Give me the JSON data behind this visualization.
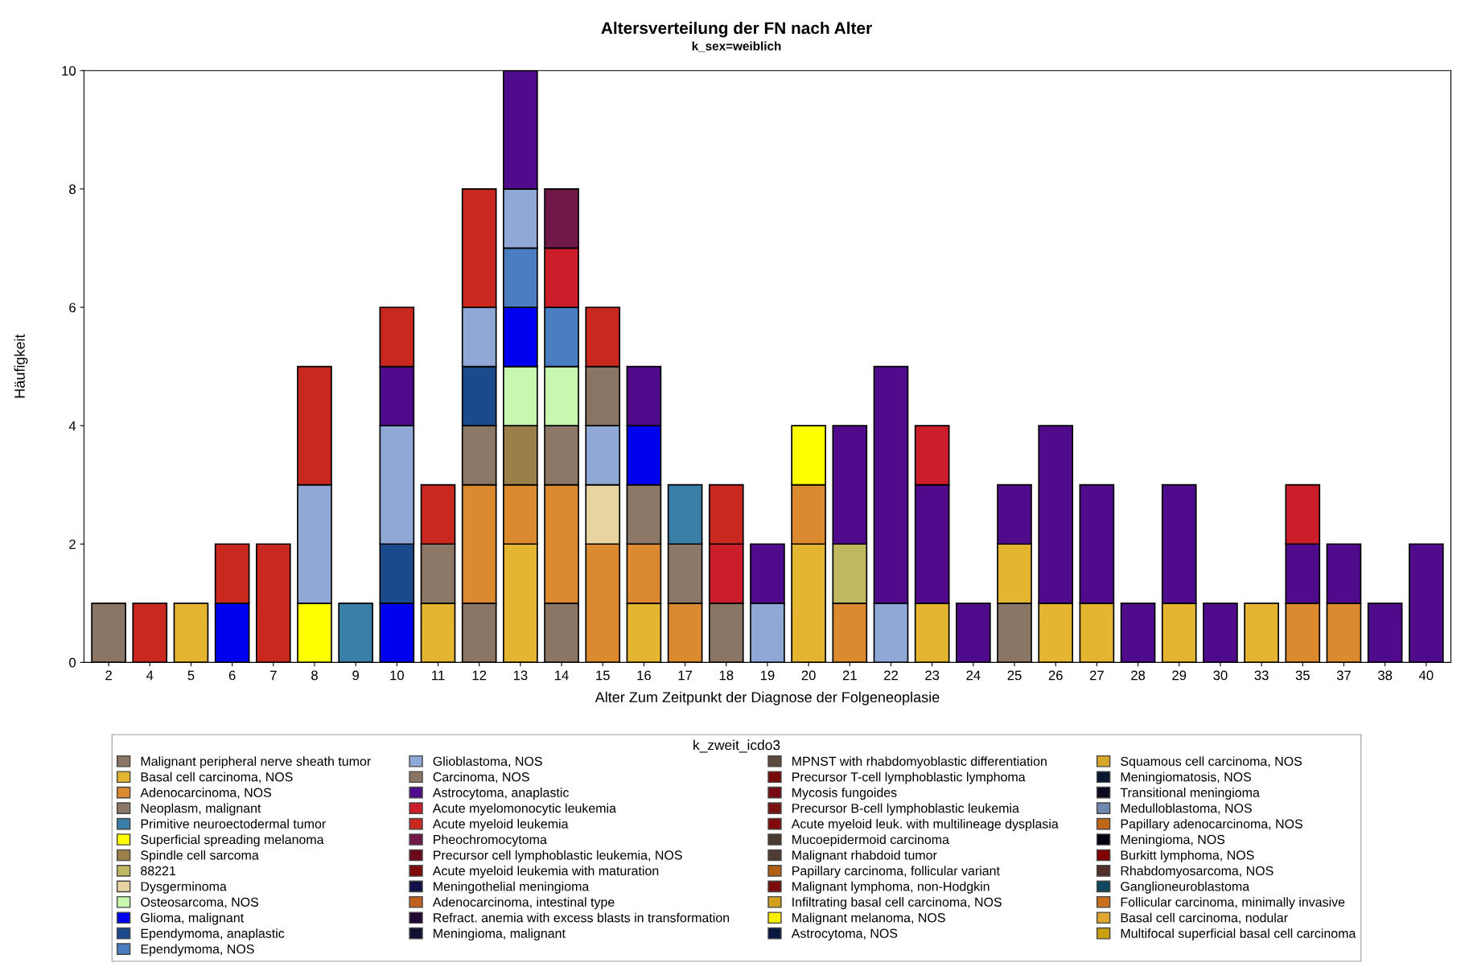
{
  "chart_data": {
    "type": "bar",
    "stacked": true,
    "title": "Altersverteilung der FN nach Alter",
    "subtitle": "k_sex=weiblich",
    "xlabel": "Alter Zum Zeitpunkt der Diagnose der Folgeneoplasie",
    "ylabel": "Häufigkeit",
    "legend_title": "k_zweit_icdo3",
    "legend": "bottom",
    "grid": false,
    "ylim": [
      0,
      10
    ],
    "yticks": [
      0,
      2,
      4,
      6,
      8,
      10
    ],
    "categories": [
      "2",
      "4",
      "5",
      "6",
      "7",
      "8",
      "9",
      "10",
      "11",
      "12",
      "13",
      "14",
      "15",
      "16",
      "17",
      "18",
      "19",
      "20",
      "21",
      "22",
      "23",
      "24",
      "25",
      "26",
      "27",
      "28",
      "29",
      "30",
      "33",
      "35",
      "37",
      "38",
      "40"
    ],
    "series": [
      {
        "name": "Malignant peripheral nerve sheath tumor",
        "color": "#8b7565",
        "values": [
          1,
          null,
          null,
          null,
          null,
          null,
          null,
          null,
          null,
          1,
          null,
          1,
          null,
          null,
          null,
          1,
          null,
          null,
          null,
          null,
          null,
          null,
          1,
          null,
          null,
          null,
          null,
          null,
          null,
          null,
          null,
          null,
          null
        ]
      },
      {
        "name": "Basal cell carcinoma, NOS",
        "color": "#e3b530",
        "values": [
          null,
          null,
          1,
          null,
          null,
          null,
          null,
          null,
          1,
          null,
          2,
          null,
          null,
          1,
          null,
          null,
          null,
          2,
          null,
          null,
          1,
          null,
          1,
          1,
          1,
          null,
          1,
          null,
          1,
          null,
          null,
          null,
          null
        ]
      },
      {
        "name": "Adenocarcinoma, NOS",
        "color": "#db8a30",
        "values": [
          null,
          null,
          null,
          null,
          null,
          null,
          null,
          null,
          null,
          2,
          1,
          2,
          2,
          1,
          1,
          null,
          null,
          1,
          1,
          null,
          null,
          null,
          null,
          null,
          null,
          null,
          null,
          null,
          null,
          1,
          1,
          null,
          null
        ]
      },
      {
        "name": "Neoplasm, malignant",
        "color": "#8d7868",
        "values": [
          null,
          null,
          null,
          null,
          null,
          null,
          null,
          null,
          1,
          1,
          null,
          1,
          null,
          1,
          1,
          null,
          null,
          null,
          null,
          null,
          null,
          null,
          null,
          null,
          null,
          null,
          null,
          null,
          null,
          null,
          null,
          null,
          null
        ]
      },
      {
        "name": "Primitive neuroectodermal tumor",
        "color": "#3a7fa8",
        "values": [
          null,
          null,
          null,
          null,
          null,
          null,
          1,
          null,
          null,
          null,
          null,
          null,
          null,
          null,
          1,
          null,
          null,
          null,
          null,
          null,
          null,
          null,
          null,
          null,
          null,
          null,
          null,
          null,
          null,
          null,
          null,
          null,
          null
        ]
      },
      {
        "name": "Superficial spreading melanoma",
        "color": "#ffff00",
        "values": [
          null,
          null,
          null,
          null,
          null,
          1,
          null,
          null,
          null,
          null,
          null,
          null,
          null,
          null,
          null,
          null,
          null,
          1,
          null,
          null,
          null,
          null,
          null,
          null,
          null,
          null,
          null,
          null,
          null,
          null,
          null,
          null,
          null
        ]
      },
      {
        "name": "Spindle cell sarcoma",
        "color": "#9a8048",
        "values": [
          null,
          null,
          null,
          null,
          null,
          null,
          null,
          null,
          null,
          null,
          1,
          null,
          null,
          null,
          null,
          null,
          null,
          null,
          null,
          null,
          null,
          null,
          null,
          null,
          null,
          null,
          null,
          null,
          null,
          null,
          null,
          null,
          null
        ]
      },
      {
        "name": "88221",
        "color": "#c0b860",
        "values": [
          null,
          null,
          null,
          null,
          null,
          null,
          null,
          null,
          null,
          null,
          null,
          null,
          null,
          null,
          null,
          null,
          null,
          null,
          1,
          null,
          null,
          null,
          null,
          null,
          null,
          null,
          null,
          null,
          null,
          null,
          null,
          null,
          null
        ]
      },
      {
        "name": "Dysgerminoma",
        "color": "#e8d4a0",
        "values": [
          null,
          null,
          null,
          null,
          null,
          null,
          null,
          null,
          null,
          null,
          null,
          null,
          1,
          null,
          null,
          null,
          null,
          null,
          null,
          null,
          null,
          null,
          null,
          null,
          null,
          null,
          null,
          null,
          null,
          null,
          null,
          null,
          null
        ]
      },
      {
        "name": "Osteosarcoma, NOS",
        "color": "#c8f8b0",
        "values": [
          null,
          null,
          null,
          null,
          null,
          null,
          null,
          null,
          null,
          null,
          1,
          1,
          null,
          null,
          null,
          null,
          null,
          null,
          null,
          null,
          null,
          null,
          null,
          null,
          null,
          null,
          null,
          null,
          null,
          null,
          null,
          null,
          null
        ]
      },
      {
        "name": "Glioma, malignant",
        "color": "#0000f0",
        "values": [
          null,
          null,
          null,
          1,
          null,
          null,
          null,
          1,
          null,
          null,
          1,
          null,
          null,
          1,
          null,
          null,
          null,
          null,
          null,
          null,
          null,
          null,
          null,
          null,
          null,
          null,
          null,
          null,
          null,
          null,
          null,
          null,
          null
        ]
      },
      {
        "name": "Ependymoma, anaplastic",
        "color": "#1a4a8a",
        "values": [
          null,
          null,
          null,
          null,
          null,
          null,
          null,
          1,
          null,
          1,
          null,
          null,
          null,
          null,
          null,
          null,
          null,
          null,
          null,
          null,
          null,
          null,
          null,
          null,
          null,
          null,
          null,
          null,
          null,
          null,
          null,
          null,
          null
        ]
      },
      {
        "name": "Ependymoma, NOS",
        "color": "#4a7ec0",
        "values": [
          null,
          null,
          null,
          null,
          null,
          null,
          null,
          null,
          null,
          null,
          1,
          1,
          null,
          null,
          null,
          null,
          null,
          null,
          null,
          null,
          null,
          null,
          null,
          null,
          null,
          null,
          null,
          null,
          null,
          null,
          null,
          null,
          null
        ]
      },
      {
        "name": "Glioblastoma, NOS",
        "color": "#8fa8d6",
        "values": [
          null,
          null,
          null,
          null,
          null,
          2,
          null,
          2,
          null,
          1,
          1,
          null,
          1,
          null,
          null,
          null,
          1,
          null,
          null,
          1,
          null,
          null,
          null,
          null,
          null,
          null,
          null,
          null,
          null,
          null,
          null,
          null,
          null
        ]
      },
      {
        "name": "Carcinoma, NOS",
        "color": "#8a7464",
        "values": [
          null,
          null,
          null,
          null,
          null,
          null,
          null,
          null,
          null,
          null,
          null,
          null,
          1,
          null,
          null,
          null,
          null,
          null,
          null,
          null,
          null,
          null,
          null,
          null,
          null,
          null,
          null,
          null,
          null,
          null,
          null,
          null,
          null
        ]
      },
      {
        "name": "Astrocytoma, anaplastic",
        "color": "#500a8c",
        "values": [
          null,
          null,
          null,
          null,
          null,
          null,
          null,
          1,
          null,
          null,
          2,
          null,
          null,
          1,
          null,
          null,
          1,
          null,
          2,
          4,
          2,
          1,
          1,
          3,
          2,
          1,
          2,
          1,
          null,
          1,
          1,
          1,
          2
        ]
      },
      {
        "name": "Acute myelomonocytic leukemia",
        "color": "#cc1e2a",
        "values": [
          null,
          null,
          null,
          null,
          null,
          null,
          null,
          null,
          null,
          null,
          null,
          1,
          null,
          null,
          null,
          1,
          null,
          null,
          null,
          null,
          1,
          null,
          null,
          null,
          null,
          null,
          null,
          null,
          null,
          1,
          null,
          null,
          null
        ]
      },
      {
        "name": "Acute myeloid leukemia",
        "color": "#c8281e",
        "values": [
          null,
          1,
          null,
          1,
          2,
          2,
          null,
          1,
          1,
          2,
          null,
          null,
          1,
          null,
          null,
          1,
          null,
          null,
          null,
          null,
          null,
          null,
          null,
          null,
          null,
          null,
          null,
          null,
          null,
          null,
          null,
          null,
          null
        ]
      },
      {
        "name": "Pheochromocytoma",
        "color": "#701848",
        "values": [
          null,
          null,
          null,
          null,
          null,
          null,
          null,
          null,
          null,
          null,
          null,
          1,
          null,
          null,
          null,
          null,
          null,
          null,
          null,
          null,
          null,
          null,
          null,
          null,
          null,
          null,
          null,
          null,
          null,
          null,
          null,
          null,
          null
        ]
      },
      {
        "name": "Precursor cell lymphoblastic leukemia, NOS",
        "color": "#6a0a1a",
        "values": [
          null,
          null,
          null,
          null,
          null,
          null,
          null,
          null,
          null,
          null,
          null,
          null,
          null,
          null,
          null,
          null,
          null,
          null,
          null,
          null,
          null,
          null,
          null,
          null,
          null,
          null,
          null,
          null,
          null,
          null,
          null,
          null,
          null
        ]
      },
      {
        "name": "Acute myeloid leukemia with maturation",
        "color": "#800a0a",
        "values": [
          null,
          null,
          null,
          null,
          null,
          null,
          null,
          null,
          null,
          null,
          null,
          null,
          null,
          null,
          null,
          null,
          null,
          null,
          null,
          null,
          null,
          null,
          null,
          null,
          null,
          null,
          null,
          null,
          null,
          null,
          null,
          null,
          null
        ]
      },
      {
        "name": "Meningothelial meningioma",
        "color": "#10104a",
        "values": [
          null,
          null,
          null,
          null,
          null,
          null,
          null,
          null,
          null,
          null,
          null,
          null,
          null,
          null,
          null,
          null,
          null,
          null,
          null,
          null,
          null,
          null,
          null,
          null,
          null,
          null,
          null,
          null,
          null,
          null,
          null,
          null,
          null
        ]
      },
      {
        "name": "Adenocarcinoma, intestinal type",
        "color": "#c06020",
        "values": [
          null,
          null,
          null,
          null,
          null,
          null,
          null,
          null,
          null,
          null,
          null,
          null,
          null,
          null,
          null,
          null,
          null,
          null,
          null,
          null,
          null,
          null,
          null,
          null,
          null,
          null,
          null,
          null,
          null,
          null,
          null,
          null,
          null
        ]
      },
      {
        "name": "Refract. anemia with excess blasts in transformation",
        "color": "#200830",
        "values": [
          null,
          null,
          null,
          null,
          null,
          null,
          null,
          null,
          null,
          null,
          null,
          null,
          null,
          null,
          null,
          null,
          null,
          null,
          null,
          null,
          null,
          null,
          null,
          null,
          null,
          null,
          null,
          null,
          null,
          null,
          null,
          null,
          null
        ]
      },
      {
        "name": "Meningioma, malignant",
        "color": "#101030",
        "values": [
          null,
          null,
          null,
          null,
          null,
          null,
          null,
          null,
          null,
          null,
          null,
          null,
          null,
          null,
          null,
          null,
          null,
          null,
          null,
          null,
          null,
          null,
          null,
          null,
          null,
          null,
          null,
          null,
          null,
          null,
          null,
          null,
          null
        ]
      },
      {
        "name": "MPNST with rhabdomyoblastic differentiation",
        "color": "#5a4a40",
        "values": [
          null,
          null,
          null,
          null,
          null,
          null,
          null,
          null,
          null,
          null,
          null,
          null,
          null,
          null,
          null,
          null,
          null,
          null,
          null,
          null,
          null,
          null,
          null,
          null,
          null,
          null,
          null,
          null,
          null,
          null,
          null,
          null,
          null
        ]
      },
      {
        "name": "Precursor T-cell lymphoblastic lymphoma",
        "color": "#780a0a",
        "values": [
          null,
          null,
          null,
          null,
          null,
          null,
          null,
          null,
          null,
          null,
          null,
          null,
          null,
          null,
          null,
          null,
          null,
          null,
          null,
          null,
          null,
          null,
          null,
          null,
          null,
          null,
          null,
          null,
          null,
          null,
          null,
          null,
          null
        ]
      },
      {
        "name": "Mycosis fungoides",
        "color": "#780812",
        "values": [
          null,
          null,
          null,
          null,
          null,
          null,
          null,
          null,
          null,
          null,
          null,
          null,
          null,
          null,
          null,
          null,
          null,
          null,
          null,
          null,
          null,
          null,
          null,
          null,
          null,
          null,
          null,
          null,
          null,
          null,
          null,
          null,
          null
        ]
      },
      {
        "name": "Precursor B-cell lymphoblastic leukemia",
        "color": "#7a1010",
        "values": [
          null,
          null,
          null,
          null,
          null,
          null,
          null,
          null,
          null,
          null,
          null,
          null,
          null,
          null,
          null,
          null,
          null,
          null,
          null,
          null,
          null,
          null,
          null,
          null,
          null,
          null,
          null,
          null,
          null,
          null,
          null,
          null,
          null
        ]
      },
      {
        "name": "Acute myeloid leuk. with multilineage dysplasia",
        "color": "#820a0a",
        "values": [
          null,
          null,
          null,
          null,
          null,
          null,
          null,
          null,
          null,
          null,
          null,
          null,
          null,
          null,
          null,
          null,
          null,
          null,
          null,
          null,
          null,
          null,
          null,
          null,
          null,
          null,
          null,
          null,
          null,
          null,
          null,
          null,
          null
        ]
      },
      {
        "name": "Mucoepidermoid carcinoma",
        "color": "#4a3a30",
        "values": [
          null,
          null,
          null,
          null,
          null,
          null,
          null,
          null,
          null,
          null,
          null,
          null,
          null,
          null,
          null,
          null,
          null,
          null,
          null,
          null,
          null,
          null,
          null,
          null,
          null,
          null,
          null,
          null,
          null,
          null,
          null,
          null,
          null
        ]
      },
      {
        "name": "Malignant rhabdoid tumor",
        "color": "#503a34",
        "values": [
          null,
          null,
          null,
          null,
          null,
          null,
          null,
          null,
          null,
          null,
          null,
          null,
          null,
          null,
          null,
          null,
          null,
          null,
          null,
          null,
          null,
          null,
          null,
          null,
          null,
          null,
          null,
          null,
          null,
          null,
          null,
          null,
          null
        ]
      },
      {
        "name": "Papillary carcinoma, follicular variant",
        "color": "#b06010",
        "values": [
          null,
          null,
          null,
          null,
          null,
          null,
          null,
          null,
          null,
          null,
          null,
          null,
          null,
          null,
          null,
          null,
          null,
          null,
          null,
          null,
          null,
          null,
          null,
          null,
          null,
          null,
          null,
          null,
          null,
          null,
          null,
          null,
          null
        ]
      },
      {
        "name": "Malignant lymphoma, non-Hodgkin",
        "color": "#7c0c0c",
        "values": [
          null,
          null,
          null,
          null,
          null,
          null,
          null,
          null,
          null,
          null,
          null,
          null,
          null,
          null,
          null,
          null,
          null,
          null,
          null,
          null,
          null,
          null,
          null,
          null,
          null,
          null,
          null,
          null,
          null,
          null,
          null,
          null,
          null
        ]
      },
      {
        "name": "Infiltrating basal cell carcinoma, NOS",
        "color": "#d0a020",
        "values": [
          null,
          null,
          null,
          null,
          null,
          null,
          null,
          null,
          null,
          null,
          null,
          null,
          null,
          null,
          null,
          null,
          null,
          null,
          null,
          null,
          null,
          null,
          null,
          null,
          null,
          null,
          null,
          null,
          null,
          null,
          null,
          null,
          null
        ]
      },
      {
        "name": "Malignant melanoma, NOS",
        "color": "#f8f000",
        "values": [
          null,
          null,
          null,
          null,
          null,
          null,
          null,
          null,
          null,
          null,
          null,
          null,
          null,
          null,
          null,
          null,
          null,
          null,
          null,
          null,
          null,
          null,
          null,
          null,
          null,
          null,
          null,
          null,
          null,
          null,
          null,
          null,
          null
        ]
      },
      {
        "name": "Astrocytoma, NOS",
        "color": "#081840",
        "values": [
          null,
          null,
          null,
          null,
          null,
          null,
          null,
          null,
          null,
          null,
          null,
          null,
          null,
          null,
          null,
          null,
          null,
          null,
          null,
          null,
          null,
          null,
          null,
          null,
          null,
          null,
          null,
          null,
          null,
          null,
          null,
          null,
          null
        ]
      },
      {
        "name": "Squamous cell carcinoma, NOS",
        "color": "#d8a828",
        "values": [
          null,
          null,
          null,
          null,
          null,
          null,
          null,
          null,
          null,
          null,
          null,
          null,
          null,
          null,
          null,
          null,
          null,
          null,
          null,
          null,
          null,
          null,
          null,
          null,
          null,
          null,
          null,
          null,
          null,
          null,
          null,
          null,
          null
        ]
      },
      {
        "name": "Meningiomatosis, NOS",
        "color": "#081830",
        "values": [
          null,
          null,
          null,
          null,
          null,
          null,
          null,
          null,
          null,
          null,
          null,
          null,
          null,
          null,
          null,
          null,
          null,
          null,
          null,
          null,
          null,
          null,
          null,
          null,
          null,
          null,
          null,
          null,
          null,
          null,
          null,
          null,
          null
        ]
      },
      {
        "name": "Transitional meningioma",
        "color": "#100820",
        "values": [
          null,
          null,
          null,
          null,
          null,
          null,
          null,
          null,
          null,
          null,
          null,
          null,
          null,
          null,
          null,
          null,
          null,
          null,
          null,
          null,
          null,
          null,
          null,
          null,
          null,
          null,
          null,
          null,
          null,
          null,
          null,
          null,
          null
        ]
      },
      {
        "name": "Medulloblastoma, NOS",
        "color": "#7088b0",
        "values": [
          null,
          null,
          null,
          null,
          null,
          null,
          null,
          null,
          null,
          null,
          null,
          null,
          null,
          null,
          null,
          null,
          null,
          null,
          null,
          null,
          null,
          null,
          null,
          null,
          null,
          null,
          null,
          null,
          null,
          null,
          null,
          null,
          null
        ]
      },
      {
        "name": "Papillary adenocarcinoma, NOS",
        "color": "#c06818",
        "values": [
          null,
          null,
          null,
          null,
          null,
          null,
          null,
          null,
          null,
          null,
          null,
          null,
          null,
          null,
          null,
          null,
          null,
          null,
          null,
          null,
          null,
          null,
          null,
          null,
          null,
          null,
          null,
          null,
          null,
          null,
          null,
          null,
          null
        ]
      },
      {
        "name": "Meningioma, NOS",
        "color": "#000010",
        "values": [
          null,
          null,
          null,
          null,
          null,
          null,
          null,
          null,
          null,
          null,
          null,
          null,
          null,
          null,
          null,
          null,
          null,
          null,
          null,
          null,
          null,
          null,
          null,
          null,
          null,
          null,
          null,
          null,
          null,
          null,
          null,
          null,
          null
        ]
      },
      {
        "name": "Burkitt lymphoma, NOS",
        "color": "#800000",
        "values": [
          null,
          null,
          null,
          null,
          null,
          null,
          null,
          null,
          null,
          null,
          null,
          null,
          null,
          null,
          null,
          null,
          null,
          null,
          null,
          null,
          null,
          null,
          null,
          null,
          null,
          null,
          null,
          null,
          null,
          null,
          null,
          null,
          null
        ]
      },
      {
        "name": "Rhabdomyosarcoma, NOS",
        "color": "#503028",
        "values": [
          null,
          null,
          null,
          null,
          null,
          null,
          null,
          null,
          null,
          null,
          null,
          null,
          null,
          null,
          null,
          null,
          null,
          null,
          null,
          null,
          null,
          null,
          null,
          null,
          null,
          null,
          null,
          null,
          null,
          null,
          null,
          null,
          null
        ]
      },
      {
        "name": "Ganglioneuroblastoma",
        "color": "#104860",
        "values": [
          null,
          null,
          null,
          null,
          null,
          null,
          null,
          null,
          null,
          null,
          null,
          null,
          null,
          null,
          null,
          null,
          null,
          null,
          null,
          null,
          null,
          null,
          null,
          null,
          null,
          null,
          null,
          null,
          null,
          null,
          null,
          null,
          null
        ]
      },
      {
        "name": "Follicular carcinoma, minimally invasive",
        "color": "#c87020",
        "values": [
          null,
          null,
          null,
          null,
          null,
          null,
          null,
          null,
          null,
          null,
          null,
          null,
          null,
          null,
          null,
          null,
          null,
          null,
          null,
          null,
          null,
          null,
          null,
          null,
          null,
          null,
          null,
          null,
          null,
          null,
          null,
          null,
          null
        ]
      },
      {
        "name": "Basal cell carcinoma, nodular",
        "color": "#e0a830",
        "values": [
          null,
          null,
          null,
          null,
          null,
          null,
          null,
          null,
          null,
          null,
          null,
          null,
          null,
          null,
          null,
          null,
          null,
          null,
          null,
          null,
          null,
          null,
          null,
          null,
          null,
          null,
          null,
          null,
          null,
          null,
          null,
          null,
          null
        ]
      },
      {
        "name": "Multifocal superficial basal cell carcinoma",
        "color": "#c8a010",
        "values": [
          null,
          null,
          null,
          null,
          null,
          null,
          null,
          null,
          null,
          null,
          null,
          null,
          null,
          null,
          null,
          null,
          null,
          null,
          null,
          null,
          null,
          null,
          null,
          null,
          null,
          null,
          null,
          null,
          null,
          null,
          null,
          null,
          null
        ]
      }
    ]
  }
}
